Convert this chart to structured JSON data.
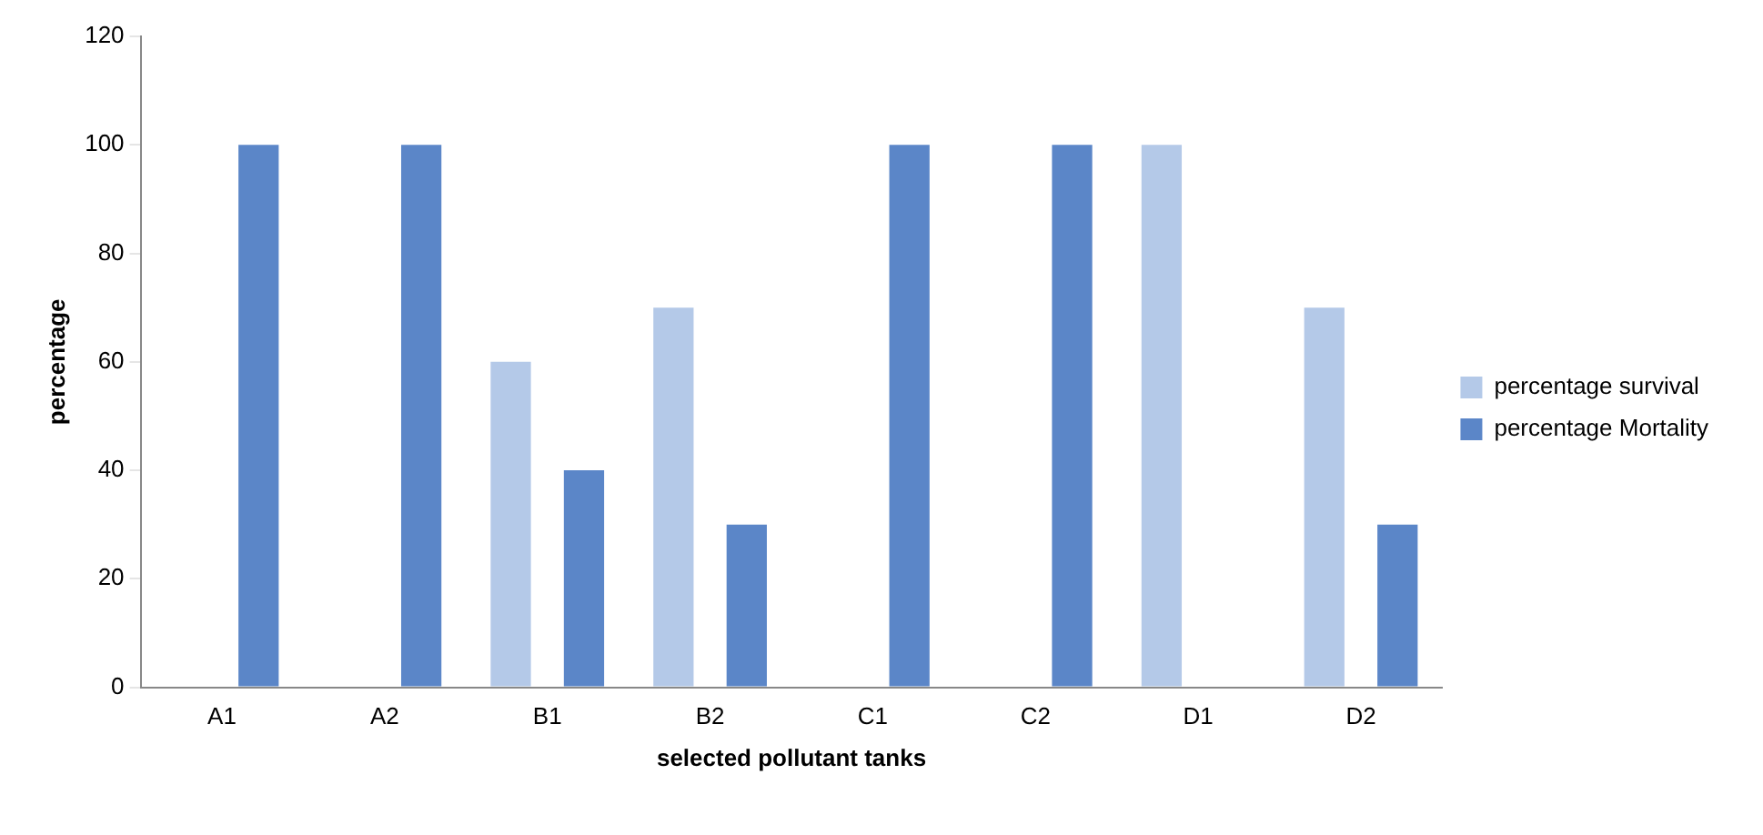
{
  "chart_data": {
    "type": "bar",
    "xlabel": "selected pollutant tanks",
    "ylabel": "percentage",
    "categories": [
      "A1",
      "A2",
      "B1",
      "B2",
      "C1",
      "C2",
      "D1",
      "D2"
    ],
    "series": [
      {
        "name": "percentage survival",
        "color": "#b4c9e8",
        "values": [
          0,
          0,
          60,
          70,
          0,
          0,
          100,
          70
        ]
      },
      {
        "name": "percentage Mortality",
        "color": "#5b86c8",
        "values": [
          100,
          100,
          40,
          30,
          100,
          100,
          0,
          30
        ]
      }
    ],
    "ylim": [
      0,
      120
    ],
    "yticks": [
      0,
      20,
      40,
      60,
      80,
      100,
      120
    ],
    "grid": false,
    "legend": "right"
  }
}
